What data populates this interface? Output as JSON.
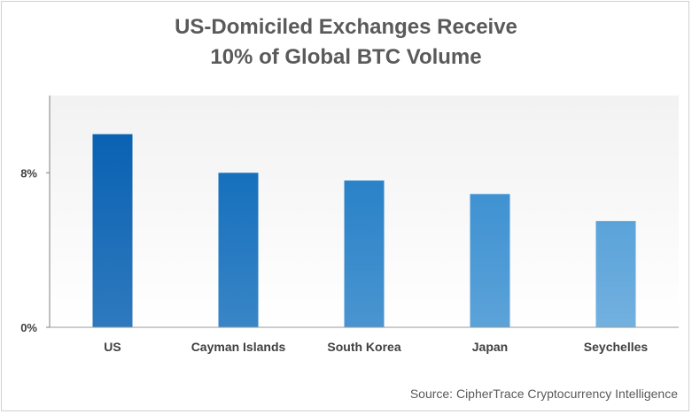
{
  "title_line1": "US-Domiciled Exchanges Receive",
  "title_line2": "10% of Global BTC Volume",
  "source": "Source: CipherTrace Cryptocurrency Intelligence",
  "colors": {
    "plot_bg_top": "#f2f2f2",
    "plot_bg_bottom": "#ffffff",
    "bar_dark": "#0b5fa8",
    "bar_light": "#6aaedf"
  },
  "chart_data": {
    "type": "bar",
    "title": "US-Domiciled Exchanges Receive 10% of Global BTC Volume",
    "categories": [
      "US",
      "Cayman Islands",
      "South Korea",
      "Japan",
      "Seychelles"
    ],
    "values": [
      10.0,
      8.0,
      7.6,
      6.9,
      5.5
    ],
    "ylim": [
      0,
      12
    ],
    "yticks": [
      0,
      8
    ],
    "ytick_labels": [
      "0%",
      "8%"
    ],
    "xlabel": "",
    "ylabel": "",
    "grid": false,
    "bar_colors": [
      "#0a62b3",
      "#1670bd",
      "#2a82c8",
      "#3f92d2",
      "#5aa3da"
    ]
  }
}
